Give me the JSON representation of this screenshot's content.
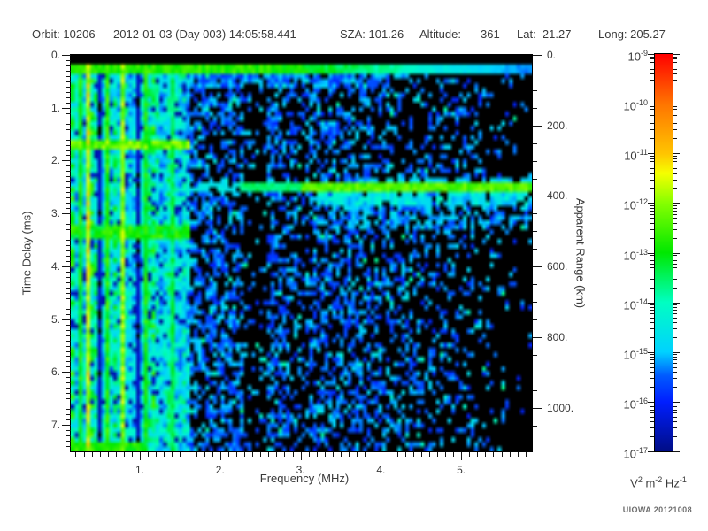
{
  "header": {
    "segments": [
      "Orbit: 10206",
      "2012-01-03 (Day 003) 14:05:58.441",
      "SZA: 101.26",
      "Altitude:",
      "361",
      "Lat:  21.27",
      "Long: 205.27"
    ]
  },
  "credit": "UIOWA 20121008",
  "chart_data": {
    "type": "heatmap",
    "xlabel": "Frequency (MHz)",
    "ylabel": "Time Delay (ms)",
    "y2label": "Apparent Range (km)",
    "x_range": [
      0.14,
      5.88
    ],
    "y_range": [
      0,
      7.5
    ],
    "y2_range": [
      0,
      1124
    ],
    "x_major_ticks": [
      {
        "v": 1,
        "label": "1."
      },
      {
        "v": 2,
        "label": "2."
      },
      {
        "v": 3,
        "label": "3."
      },
      {
        "v": 4,
        "label": "4."
      },
      {
        "v": 5,
        "label": "5."
      }
    ],
    "y_major_ticks": [
      {
        "v": 0,
        "label": "0."
      },
      {
        "v": 1,
        "label": "1."
      },
      {
        "v": 2,
        "label": "2."
      },
      {
        "v": 3,
        "label": "3."
      },
      {
        "v": 4,
        "label": "4."
      },
      {
        "v": 5,
        "label": "5."
      },
      {
        "v": 6,
        "label": "6."
      },
      {
        "v": 7,
        "label": "7."
      }
    ],
    "y2_major_ticks": [
      {
        "v": 0,
        "label": "0."
      },
      {
        "v": 200,
        "label": "200."
      },
      {
        "v": 400,
        "label": "400."
      },
      {
        "v": 600,
        "label": "600."
      },
      {
        "v": 800,
        "label": "800."
      },
      {
        "v": 1000,
        "label": "1000."
      }
    ],
    "x_minor_step": 0.1,
    "y_minor_step": 0.1,
    "y2_minor_step": 50,
    "colorbar": {
      "scale": "log",
      "exponents": [
        -9,
        -10,
        -11,
        -12,
        -13,
        -14,
        -15,
        -16,
        -17
      ],
      "unit_parts": [
        [
          "V",
          "2"
        ],
        [
          "m",
          "-2"
        ],
        [
          "Hz",
          "-1"
        ]
      ],
      "stops": [
        [
          0.0,
          "#000d85"
        ],
        [
          0.125,
          "#001eff"
        ],
        [
          0.19,
          "#005aff"
        ],
        [
          0.25,
          "#00d2ff"
        ],
        [
          0.375,
          "#00ffc2"
        ],
        [
          0.5,
          "#00e800"
        ],
        [
          0.625,
          "#86ff00"
        ],
        [
          0.7,
          "#f6ff00"
        ],
        [
          0.75,
          "#ffc400"
        ],
        [
          0.875,
          "#ff7400"
        ],
        [
          1.0,
          "#ff0000"
        ]
      ]
    },
    "features": {
      "seed": 20121008,
      "grid_cols": 120,
      "grid_rows": 84,
      "black_threshold": 0.015,
      "top_black_t_max": 0.17,
      "first_echo": {
        "t_min": 0.17,
        "t_max": 0.33,
        "v": 0.54,
        "f_knee": 2.7,
        "fade_per_mhz": 0.105,
        "v_min": 0.2
      },
      "left_zone": {
        "f_max": 1.62,
        "base_min": 0.28,
        "base_span": 0.22,
        "low_f_bright": {
          "f_max": 0.21,
          "base": 0.42
        },
        "black_col_prob": 0.07,
        "dark_speck_prob": 0.1,
        "plasma_lines": [
          {
            "f": 0.365,
            "v": 0.68
          },
          {
            "f": 0.79,
            "v": 0.63
          },
          {
            "f": 0.6,
            "v": 0.52
          },
          {
            "f": 1.07,
            "v": 0.5
          },
          {
            "f": 1.41,
            "v": 0.45
          },
          {
            "f": 0.255,
            "v": 0.5
          }
        ],
        "h_bands": [
          {
            "t": 1.72,
            "hw": 0.1,
            "v": 0.58
          },
          {
            "t": 3.35,
            "hw": 0.13,
            "v": 0.5
          }
        ],
        "bottom_band": {
          "t_min": 7.28,
          "f_max": 1.05,
          "v": 0.48
        }
      },
      "speckle_zones": [
        {
          "f_min": 1.62,
          "f_max": 2.3,
          "density": 0.55
        },
        {
          "f_min": 2.3,
          "f_max": 2.57,
          "density": 0.18
        },
        {
          "f_min": 2.57,
          "f_max": 2.95,
          "density": 0.5
        },
        {
          "f_min": 2.95,
          "f_max": 3.12,
          "density": 0.3
        },
        {
          "f_min": 3.12,
          "f_max": 3.6,
          "density": 0.5
        },
        {
          "f_min": 3.6,
          "f_max": 5.88,
          "density": 0.5,
          "density_end": 0.05
        }
      ],
      "speckle_v_min": 0.13,
      "speckle_v_span": 0.14,
      "cyan_fleck_prob": 0.06,
      "cyan_fleck_v": 0.28,
      "under_band_boost": {
        "t_max": 0.62,
        "f_max": 4.1,
        "extra": 0.3
      },
      "surface_echo": {
        "t_center": 2.52,
        "half_width": 0.1,
        "segments": [
          {
            "f_min": 3.0,
            "v": 0.58
          },
          {
            "f_min": 2.25,
            "v": 0.43
          },
          {
            "f_min": 1.62,
            "v": 0.31,
            "prob": 0.75
          }
        ],
        "diffuse": [
          {
            "t_min": 2.62,
            "t_max": 2.84,
            "f_min": 3.2,
            "density": 0.85,
            "v_min": 0.22,
            "v_span": 0.16
          },
          {
            "t_min": 2.84,
            "t_max": 3.3,
            "f_min": 3.35,
            "density": 0.5,
            "v_min": 0.16,
            "v_span": 0.14
          },
          {
            "t_min": 2.33,
            "t_max": 2.42,
            "f_min": 3.6,
            "density": 0.5,
            "v_min": 0.22,
            "v_span": 0.08
          }
        ]
      }
    }
  }
}
